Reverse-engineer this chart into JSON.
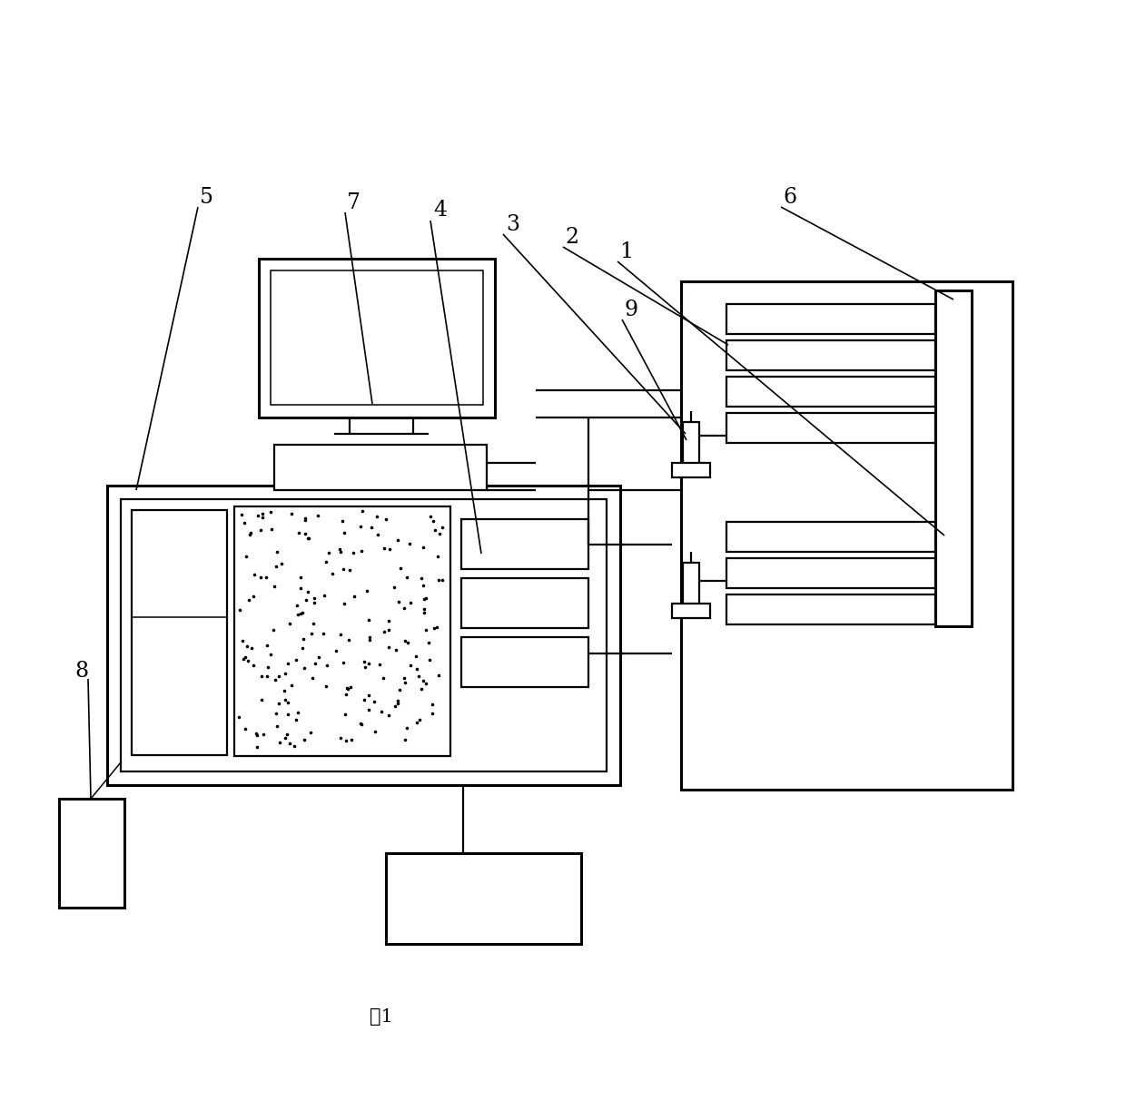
{
  "bg_color": "#ffffff",
  "title": "图1",
  "title_fontsize": 15,
  "label_fontsize": 17,
  "lw_thick": 2.2,
  "lw_med": 1.6,
  "lw_thin": 1.1
}
